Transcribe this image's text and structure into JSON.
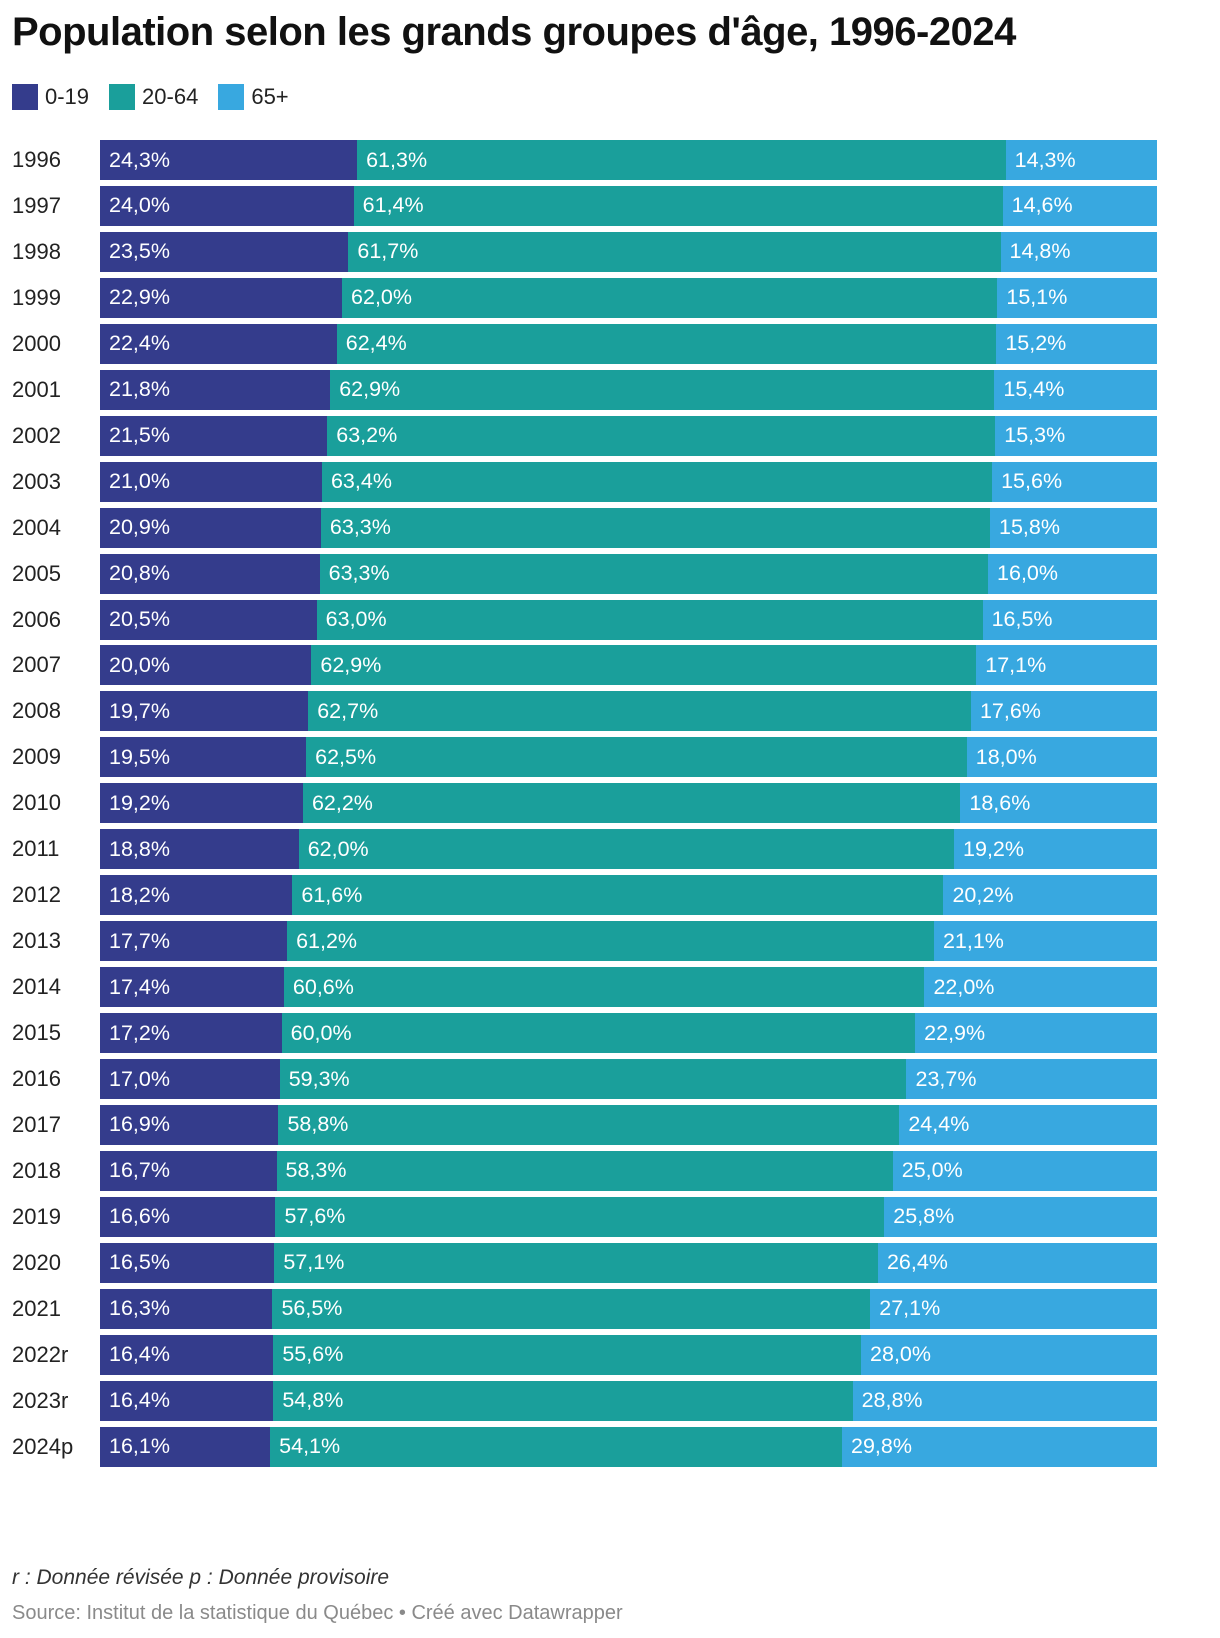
{
  "title": "Population selon les grands groupes d'âge, 1996-2024",
  "legend": [
    {
      "label": "0-19",
      "color": "#343c8c"
    },
    {
      "label": "20-64",
      "color": "#1a9f9b"
    },
    {
      "label": "65+",
      "color": "#38a8e0"
    }
  ],
  "chart_data": {
    "type": "bar",
    "orientation": "horizontal",
    "stacked": "100%",
    "title": "Population selon les grands groupes d'âge, 1996-2024",
    "categories": [
      "1996",
      "1997",
      "1998",
      "1999",
      "2000",
      "2001",
      "2002",
      "2003",
      "2004",
      "2005",
      "2006",
      "2007",
      "2008",
      "2009",
      "2010",
      "2011",
      "2012",
      "2013",
      "2014",
      "2015",
      "2016",
      "2017",
      "2018",
      "2019",
      "2020",
      "2021",
      "2022r",
      "2023r",
      "2024p"
    ],
    "series": [
      {
        "name": "0-19",
        "color": "#343c8c",
        "values": [
          24.3,
          24.0,
          23.5,
          22.9,
          22.4,
          21.8,
          21.5,
          21.0,
          20.9,
          20.8,
          20.5,
          20.0,
          19.7,
          19.5,
          19.2,
          18.8,
          18.2,
          17.7,
          17.4,
          17.2,
          17.0,
          16.9,
          16.7,
          16.6,
          16.5,
          16.3,
          16.4,
          16.4,
          16.1
        ],
        "labels": [
          "24,3%",
          "24,0%",
          "23,5%",
          "22,9%",
          "22,4%",
          "21,8%",
          "21,5%",
          "21,0%",
          "20,9%",
          "20,8%",
          "20,5%",
          "20,0%",
          "19,7%",
          "19,5%",
          "19,2%",
          "18,8%",
          "18,2%",
          "17,7%",
          "17,4%",
          "17,2%",
          "17,0%",
          "16,9%",
          "16,7%",
          "16,6%",
          "16,5%",
          "16,3%",
          "16,4%",
          "16,4%",
          "16,1%"
        ]
      },
      {
        "name": "20-64",
        "color": "#1a9f9b",
        "values": [
          61.3,
          61.4,
          61.7,
          62.0,
          62.4,
          62.9,
          63.2,
          63.4,
          63.3,
          63.3,
          63.0,
          62.9,
          62.7,
          62.5,
          62.2,
          62.0,
          61.6,
          61.2,
          60.6,
          60.0,
          59.3,
          58.8,
          58.3,
          57.6,
          57.1,
          56.5,
          55.6,
          54.8,
          54.1
        ],
        "labels": [
          "61,3%",
          "61,4%",
          "61,7%",
          "62,0%",
          "62,4%",
          "62,9%",
          "63,2%",
          "63,4%",
          "63,3%",
          "63,3%",
          "63,0%",
          "62,9%",
          "62,7%",
          "62,5%",
          "62,2%",
          "62,0%",
          "61,6%",
          "61,2%",
          "60,6%",
          "60,0%",
          "59,3%",
          "58,8%",
          "58,3%",
          "57,6%",
          "57,1%",
          "56,5%",
          "55,6%",
          "54,8%",
          "54,1%"
        ]
      },
      {
        "name": "65+",
        "color": "#38a8e0",
        "values": [
          14.3,
          14.6,
          14.8,
          15.1,
          15.2,
          15.4,
          15.3,
          15.6,
          15.8,
          16.0,
          16.5,
          17.1,
          17.6,
          18.0,
          18.6,
          19.2,
          20.2,
          21.1,
          22.0,
          22.9,
          23.7,
          24.4,
          25.0,
          25.8,
          26.4,
          27.1,
          28.0,
          28.8,
          29.8
        ],
        "labels": [
          "14,3%",
          "14,6%",
          "14,8%",
          "15,1%",
          "15,2%",
          "15,4%",
          "15,3%",
          "15,6%",
          "15,8%",
          "16,0%",
          "16,5%",
          "17,1%",
          "17,6%",
          "18,0%",
          "18,6%",
          "19,2%",
          "20,2%",
          "21,1%",
          "22,0%",
          "22,9%",
          "23,7%",
          "24,4%",
          "25,0%",
          "25,8%",
          "26,4%",
          "27,1%",
          "28,0%",
          "28,8%",
          "29,8%"
        ]
      }
    ],
    "xlim": [
      0,
      100
    ],
    "grid": false,
    "legend_position": "top-left"
  },
  "footnote": "r : Donnée révisée p : Donnée provisoire",
  "source": "Source: Institut de la statistique du Québec • Créé avec Datawrapper"
}
